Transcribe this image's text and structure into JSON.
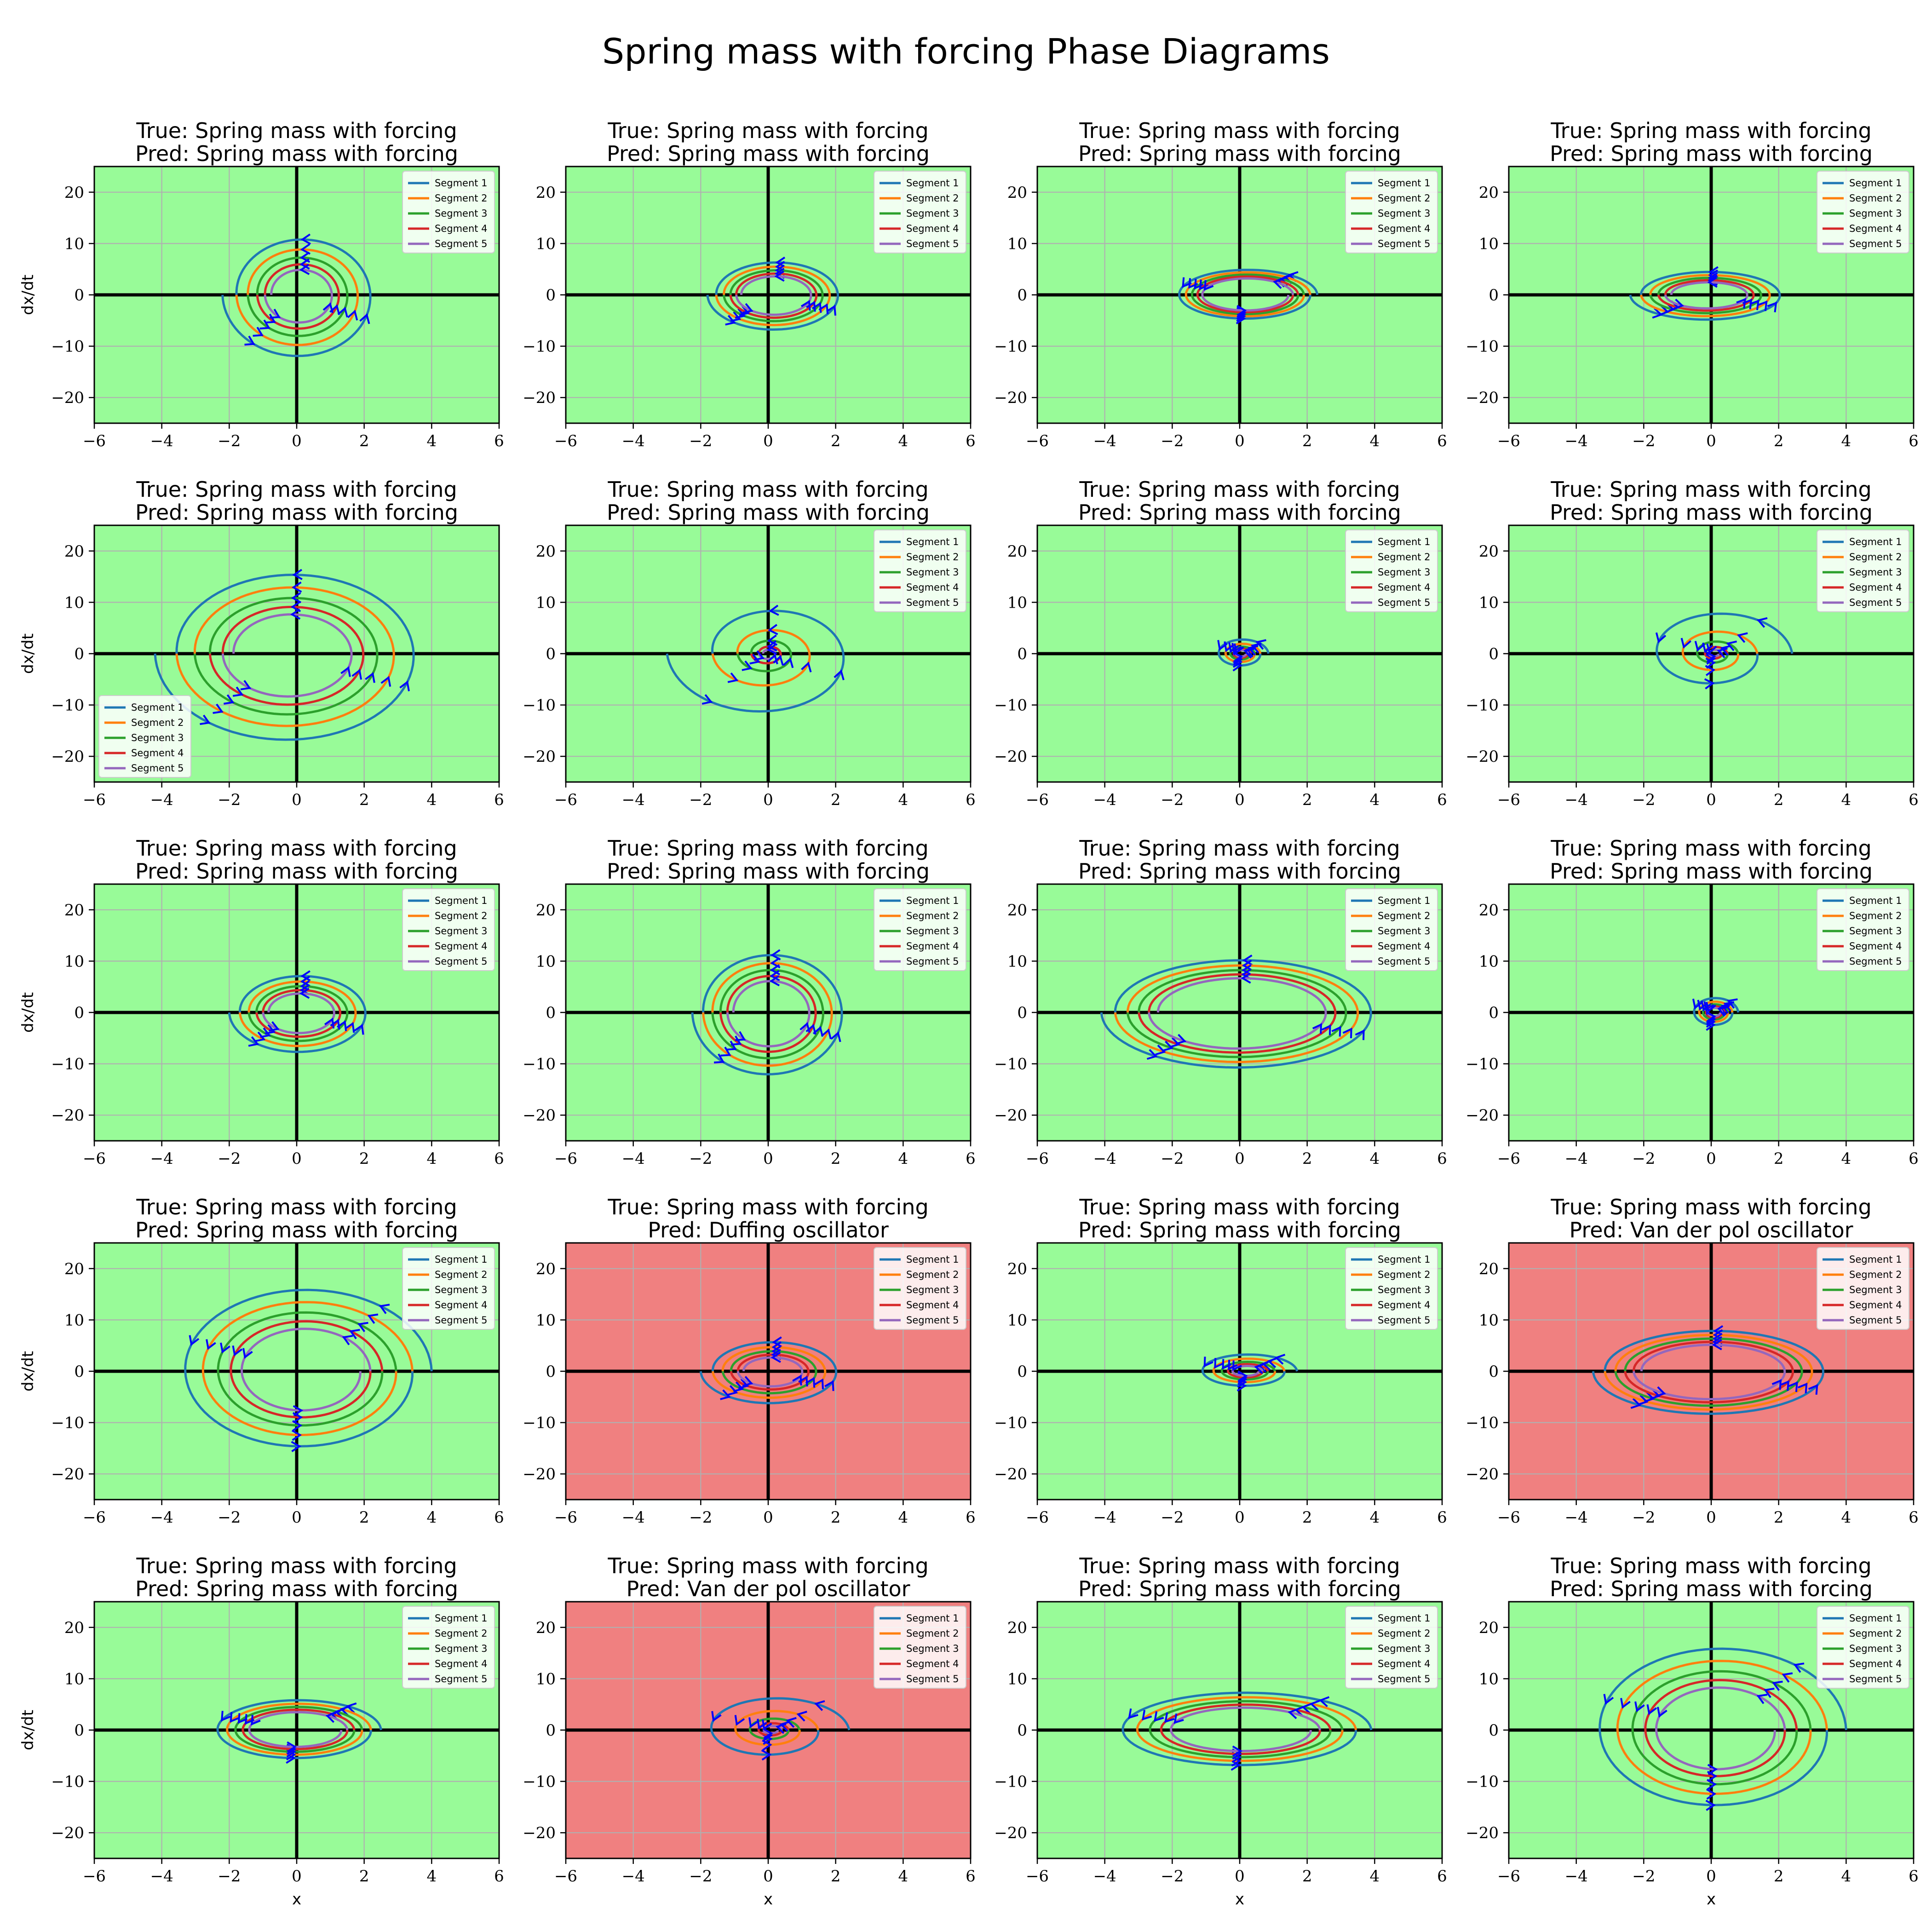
{
  "chart_data": {
    "type": "line",
    "title": "Spring mass with forcing Phase Diagrams",
    "xlabel": "x",
    "ylabel": "dx/dt",
    "xlim": [
      -6,
      6
    ],
    "ylim": [
      -25,
      25
    ],
    "xticks": [
      -6,
      -4,
      -2,
      0,
      2,
      4,
      6
    ],
    "yticks": [
      -20,
      -10,
      0,
      10,
      20
    ],
    "grid": true,
    "legend_entries": [
      "Segment 1",
      "Segment 2",
      "Segment 3",
      "Segment 4",
      "Segment 5"
    ],
    "segment_colors": [
      "#1f77b4",
      "#ff7f0e",
      "#2ca02c",
      "#d62728",
      "#9467bd"
    ],
    "arrow_color": "#0000ff",
    "correct_bg": "#98fb98",
    "wrong_bg": "#f08080",
    "panels": [
      {
        "true_label": "True: Spring mass with forcing",
        "pred_label": "Pred: Spring mass with forcing",
        "correct": true,
        "legend": "upper right",
        "cx": 0.1,
        "ax": 2.3,
        "ay": 12.5,
        "decay": 0.82,
        "x_end": -2.6
      },
      {
        "true_label": "True: Spring mass with forcing",
        "pred_label": "Pred: Spring mass with forcing",
        "correct": true,
        "legend": "upper right",
        "cx": 0.2,
        "ax": 2.0,
        "ay": 7.0,
        "decay": 0.87,
        "x_end": -1.9
      },
      {
        "true_label": "True: Spring mass with forcing",
        "pred_label": "Pred: Spring mass with forcing",
        "correct": true,
        "legend": "upper right",
        "cx": 0.2,
        "ax": 2.1,
        "ay": 5.0,
        "decay": 0.9,
        "x_end": 2.3
      },
      {
        "true_label": "True: Spring mass with forcing",
        "pred_label": "Pred: Spring mass with forcing",
        "correct": true,
        "legend": "upper right",
        "cx": -0.1,
        "ax": 2.3,
        "ay": 5.0,
        "decay": 0.86,
        "x_end": -2.8
      },
      {
        "true_label": "True: Spring mass with forcing",
        "pred_label": "Pred: Spring mass with forcing",
        "correct": true,
        "legend": "lower left",
        "cx": -0.2,
        "ax": 4.0,
        "ay": 17.5,
        "decay": 0.84,
        "x_end": -4.4
      },
      {
        "true_label": "True: Spring mass with forcing",
        "pred_label": "Pred: Spring mass with forcing",
        "correct": true,
        "legend": "upper right",
        "cx": 0.0,
        "ax": 3.0,
        "ay": 13.0,
        "decay": 0.55,
        "x_end": -3.2
      },
      {
        "true_label": "True: Spring mass with forcing",
        "pred_label": "Pred: Spring mass with forcing",
        "correct": true,
        "legend": "upper right",
        "cx": 0.05,
        "ax": 0.8,
        "ay": 3.0,
        "decay": 0.7,
        "x_end": 0.8
      },
      {
        "true_label": "True: Spring mass with forcing",
        "pred_label": "Pred: Spring mass with forcing",
        "correct": true,
        "legend": "upper right",
        "cx": 0.1,
        "ax": 2.3,
        "ay": 9.0,
        "decay": 0.55,
        "x_end": 2.7
      },
      {
        "true_label": "True: Spring mass with forcing",
        "pred_label": "Pred: Spring mass with forcing",
        "correct": true,
        "legend": "upper right",
        "cx": 0.1,
        "ax": 2.1,
        "ay": 8.0,
        "decay": 0.85,
        "x_end": -2.4
      },
      {
        "true_label": "True: Spring mass with forcing",
        "pred_label": "Pred: Spring mass with forcing",
        "correct": true,
        "legend": "upper right",
        "cx": 0.05,
        "ax": 2.3,
        "ay": 12.5,
        "decay": 0.86,
        "x_end": -2.4
      },
      {
        "true_label": "True: Spring mass with forcing",
        "pred_label": "Pred: Spring mass with forcing",
        "correct": true,
        "legend": "upper right",
        "cx": 0.0,
        "ax": 4.1,
        "ay": 11.0,
        "decay": 0.9,
        "x_end": -4.3
      },
      {
        "true_label": "True: Spring mass with forcing",
        "pred_label": "Pred: Spring mass with forcing",
        "correct": true,
        "legend": "upper right",
        "cx": 0.1,
        "ax": 0.7,
        "ay": 3.0,
        "decay": 0.75,
        "x_end": 0.7
      },
      {
        "true_label": "True: Spring mass with forcing",
        "pred_label": "Pred: Spring mass with forcing",
        "correct": true,
        "legend": "upper right",
        "cx": 0.2,
        "ax": 3.8,
        "ay": 16.5,
        "decay": 0.85,
        "x_end": 4.5
      },
      {
        "true_label": "True: Spring mass with forcing",
        "pred_label": "Pred: Duffing oscillator",
        "correct": false,
        "legend": "upper right",
        "cx": 0.1,
        "ax": 2.1,
        "ay": 6.5,
        "decay": 0.83,
        "x_end": -2.6
      },
      {
        "true_label": "True: Spring mass with forcing",
        "pred_label": "Pred: Spring mass with forcing",
        "correct": true,
        "legend": "upper right",
        "cx": 0.2,
        "ax": 1.5,
        "ay": 3.5,
        "decay": 0.75,
        "x_end": 2.0
      },
      {
        "true_label": "True: Spring mass with forcing",
        "pred_label": "Pred: Van der pol oscillator",
        "correct": false,
        "legend": "upper right",
        "cx": 0.0,
        "ax": 3.5,
        "ay": 8.5,
        "decay": 0.9,
        "x_end": -3.6
      },
      {
        "true_label": "True: Spring mass with forcing",
        "pred_label": "Pred: Spring mass with forcing",
        "correct": true,
        "legend": "upper right",
        "cx": 0.0,
        "ax": 2.5,
        "ay": 6.0,
        "decay": 0.88,
        "x_end": 2.6
      },
      {
        "true_label": "True: Spring mass with forcing",
        "pred_label": "Pred: Van der pol oscillator",
        "correct": false,
        "legend": "upper right",
        "cx": 0.1,
        "ax": 2.3,
        "ay": 7.0,
        "decay": 0.6,
        "x_end": 2.6
      },
      {
        "true_label": "True: Spring mass with forcing",
        "pred_label": "Pred: Spring mass with forcing",
        "correct": true,
        "legend": "upper right",
        "cx": 0.1,
        "ax": 3.8,
        "ay": 7.5,
        "decay": 0.88,
        "x_end": 3.8
      },
      {
        "true_label": "True: Spring mass with forcing",
        "pred_label": "Pred: Spring mass with forcing",
        "correct": true,
        "legend": "upper right",
        "cx": 0.2,
        "ax": 3.8,
        "ay": 16.5,
        "decay": 0.85,
        "x_end": 4.8
      }
    ]
  }
}
